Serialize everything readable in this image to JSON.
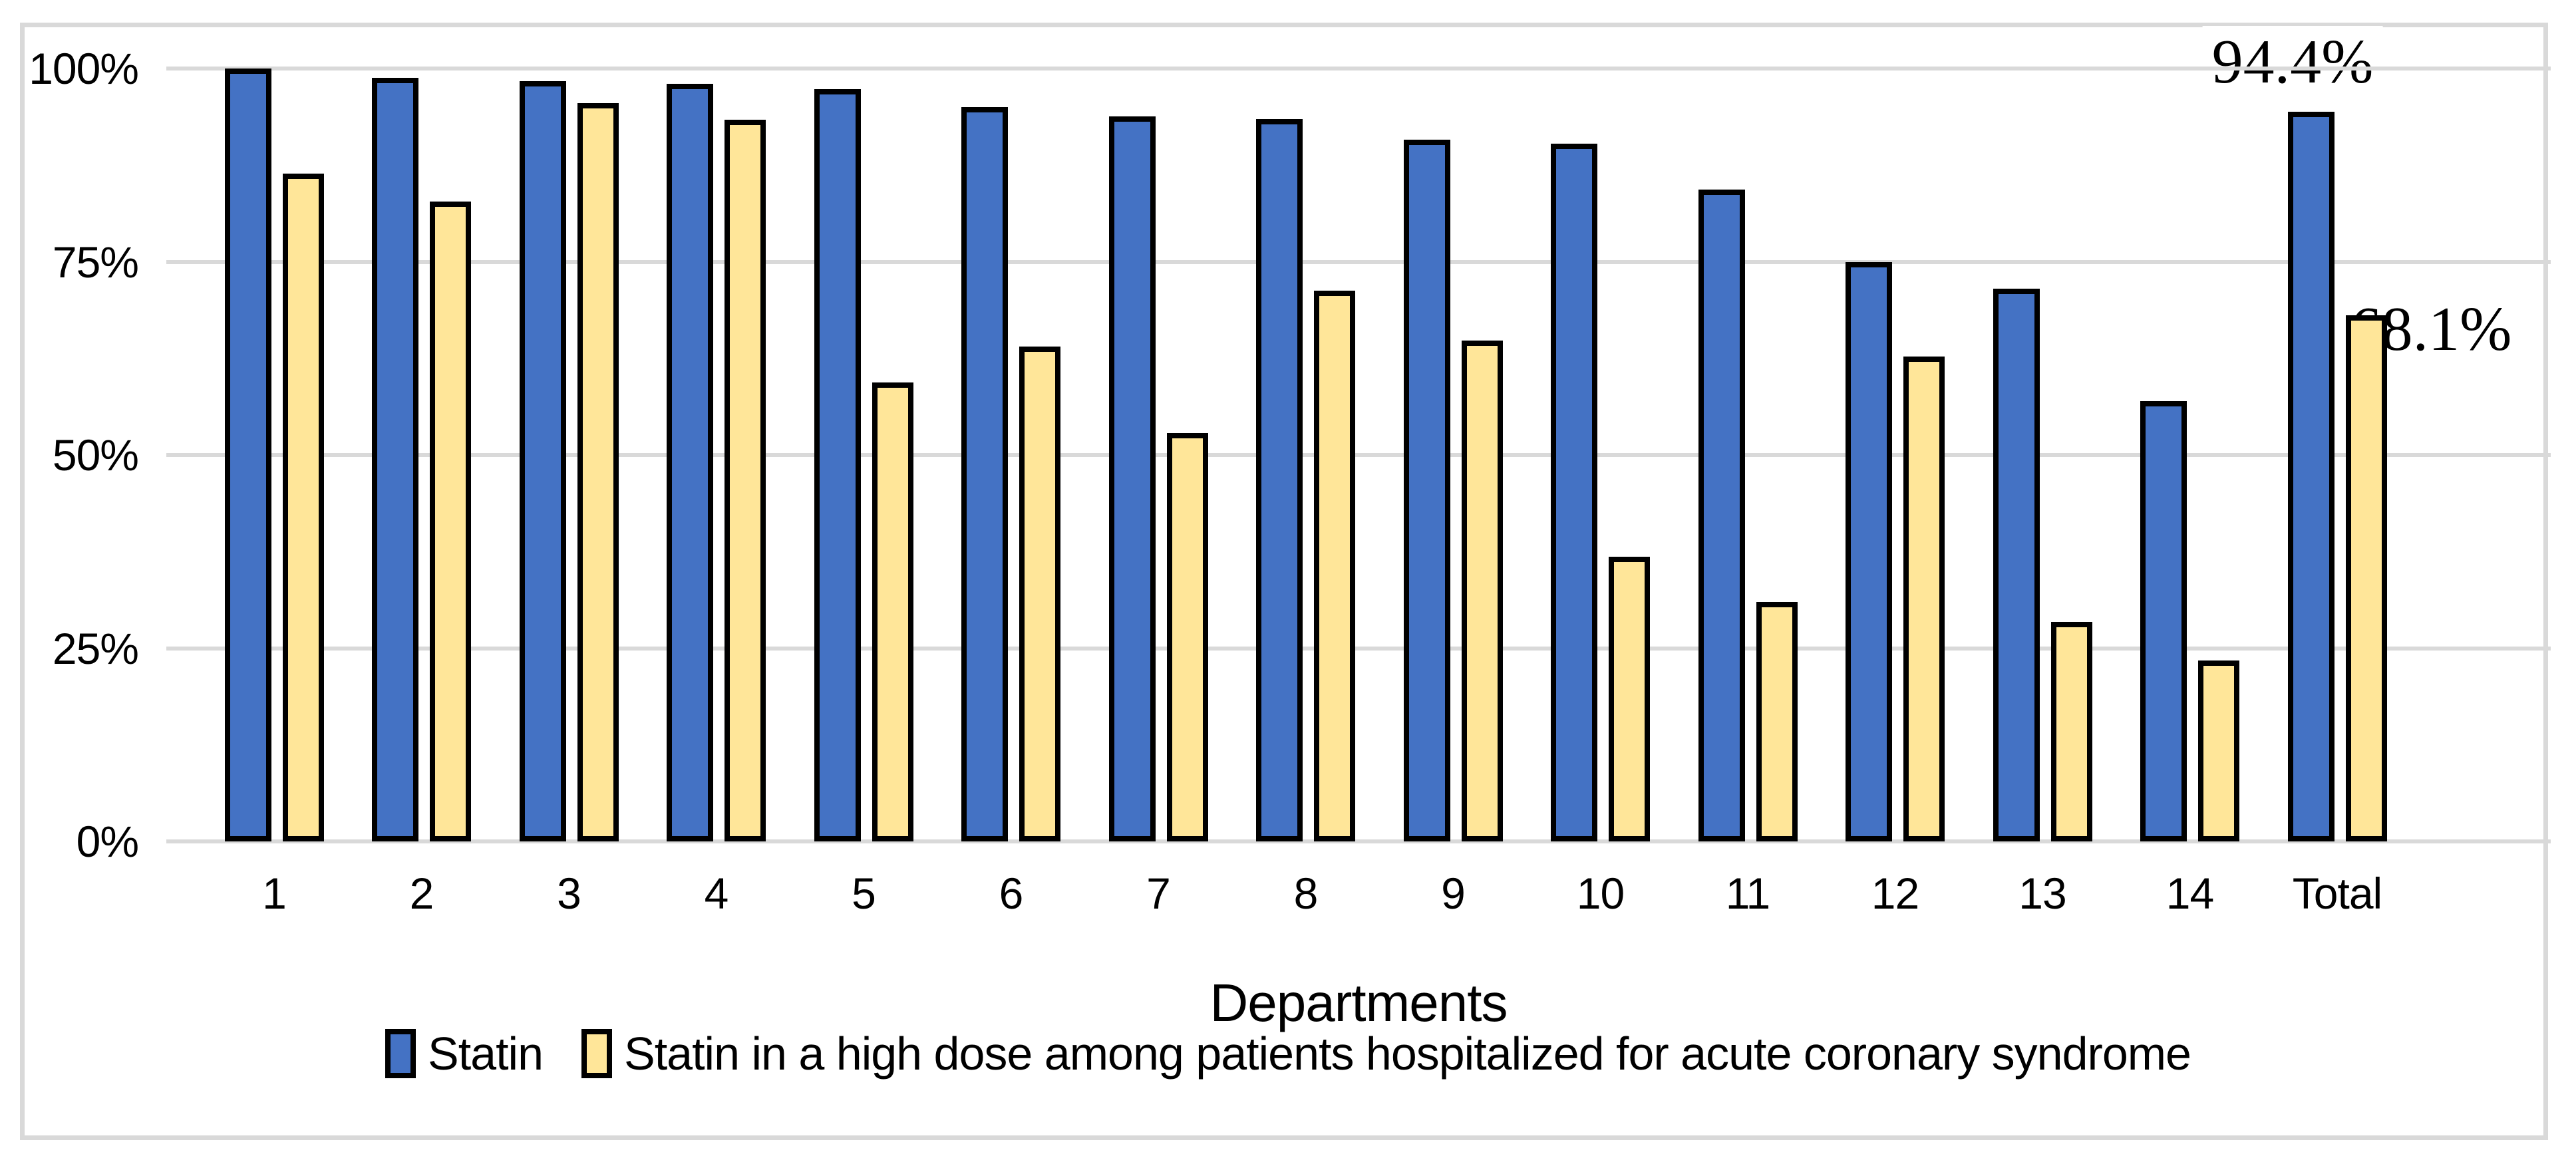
{
  "figure": {
    "background_color": "#FFFFFF",
    "border_color": "#D9D9D9"
  },
  "chart_data": {
    "type": "bar",
    "title": "",
    "xlabel": "Departments",
    "ylabel": "",
    "categories": [
      "1",
      "2",
      "3",
      "4",
      "5",
      "6",
      "7",
      "8",
      "9",
      "10",
      "11",
      "12",
      "13",
      "14",
      "Total"
    ],
    "series": [
      {
        "name": "Statin",
        "color": "#4472C4",
        "values": [
          100,
          98.8,
          98.4,
          98,
          97.3,
          95,
          93.8,
          93.5,
          90.8,
          90.3,
          84.3,
          75,
          71.5,
          57,
          94.4
        ]
      },
      {
        "name": "Statin in a high dose among patients hospitalized for acute coronary syndrome",
        "color": "#FFE699",
        "values": [
          86.4,
          82.8,
          95.5,
          93.4,
          59.4,
          64,
          52.8,
          71.3,
          64.8,
          36.8,
          31,
          62.7,
          28.4,
          23.4,
          68.1
        ]
      }
    ],
    "bar_border_color": "#000000",
    "ylim": [
      0,
      100
    ],
    "yticks": [
      {
        "label": "0%",
        "value": 0
      },
      {
        "label": "25%",
        "value": 25
      },
      {
        "label": "50%",
        "value": 50
      },
      {
        "label": "75%",
        "value": 75
      },
      {
        "label": "100%",
        "value": 100
      }
    ],
    "grid": "horizontal",
    "gridline_color": "#D9D9D9",
    "legend_position": "bottom",
    "annotations": [
      {
        "text": "94.4%",
        "series": "Statin",
        "category": "Total"
      },
      {
        "text": "68.1%",
        "series": "Statin in a high dose among patients hospitalized for acute coronary syndrome",
        "category": "Total"
      }
    ]
  }
}
